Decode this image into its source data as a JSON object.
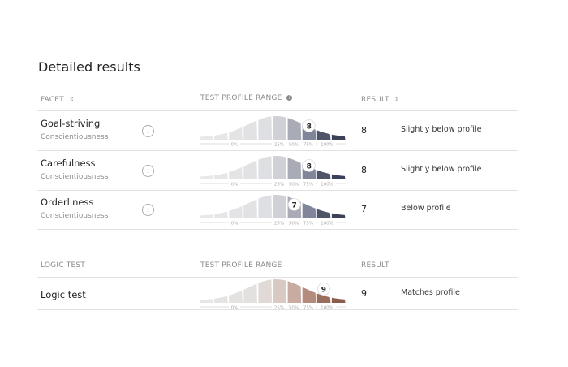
{
  "title": "Detailed results",
  "axis_labels": [
    "0%",
    "25%",
    "50%",
    "75%",
    "100%"
  ],
  "palettes": {
    "slate": [
      "#e8e8ea",
      "#e6e6e8",
      "#e4e4e6",
      "#e2e2e5",
      "#dedfe2",
      "#d0d1d6",
      "#a9acb6",
      "#80859a",
      "#4e5569",
      "#3b4258"
    ],
    "brown": [
      "#e8e6e5",
      "#e6e4e3",
      "#e4e2e1",
      "#e3e0df",
      "#e0d9d6",
      "#d9c9c3",
      "#c9aca1",
      "#b38c7d",
      "#9a6d5c",
      "#8a5c4b"
    ]
  },
  "table1": {
    "headers": {
      "facet": "FACET",
      "range": "TEST PROFILE RANGE",
      "result": "RESULT"
    },
    "rows": [
      {
        "name": "Goal-striving",
        "category": "Conscientiousness",
        "score": 8,
        "result": "8",
        "description": "Slightly below profile",
        "palette": "slate"
      },
      {
        "name": "Carefulness",
        "category": "Conscientiousness",
        "score": 8,
        "result": "8",
        "description": "Slightly below profile",
        "palette": "slate"
      },
      {
        "name": "Orderliness",
        "category": "Conscientiousness",
        "score": 7,
        "result": "7",
        "description": "Below profile",
        "palette": "slate"
      }
    ]
  },
  "table2": {
    "headers": {
      "facet": "LOGIC TEST",
      "range": "TEST PROFILE RANGE",
      "result": "RESULT"
    },
    "rows": [
      {
        "name": "Logic test",
        "score": 9,
        "result": "9",
        "description": "Matches profile",
        "palette": "brown"
      }
    ]
  }
}
